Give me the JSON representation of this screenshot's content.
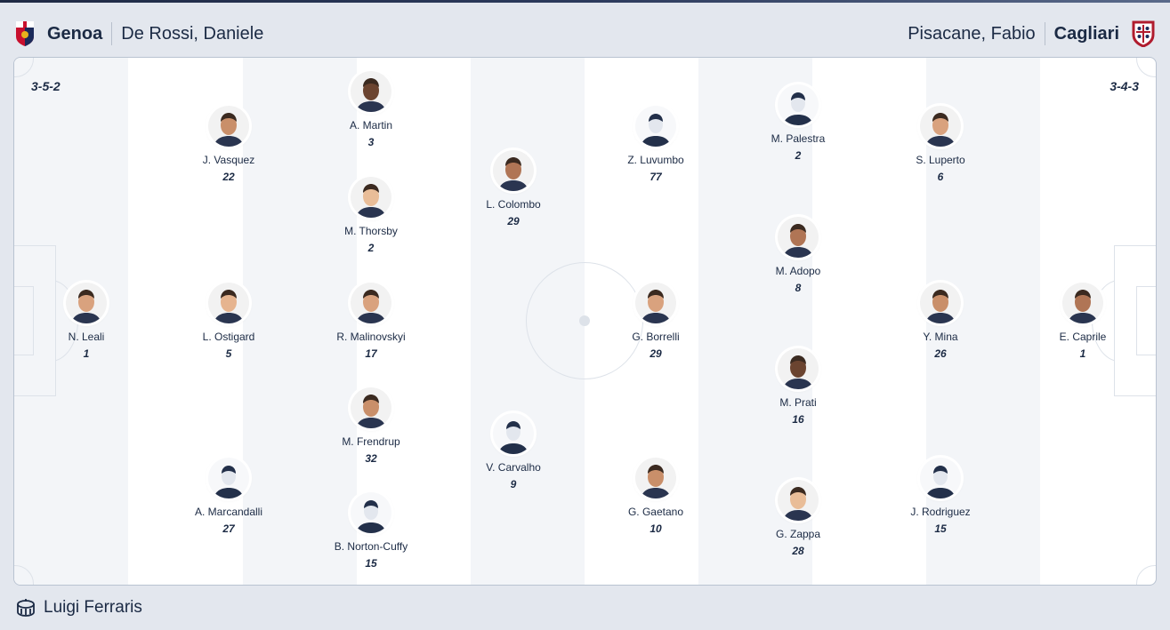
{
  "home": {
    "team": "Genoa",
    "coach": "De Rossi, Daniele",
    "formation": "3-5-2",
    "crest_colors": [
      "#c8102e",
      "#1b2a5a"
    ]
  },
  "away": {
    "team": "Cagliari",
    "coach": "Pisacane, Fabio",
    "formation": "3-4-3",
    "crest_colors": [
      "#b01c2e",
      "#1b2a5a"
    ]
  },
  "players": [
    {
      "name": "N. Leali",
      "number": "1",
      "team": "home",
      "photo": true
    },
    {
      "name": "J. Vasquez",
      "number": "22",
      "team": "home",
      "photo": true
    },
    {
      "name": "L. Ostigard",
      "number": "5",
      "team": "home",
      "photo": true
    },
    {
      "name": "A. Marcandalli",
      "number": "27",
      "team": "home",
      "photo": false
    },
    {
      "name": "A. Martin",
      "number": "3",
      "team": "home",
      "photo": true
    },
    {
      "name": "M. Thorsby",
      "number": "2",
      "team": "home",
      "photo": true
    },
    {
      "name": "R. Malinovskyi",
      "number": "17",
      "team": "home",
      "photo": true
    },
    {
      "name": "M. Frendrup",
      "number": "32",
      "team": "home",
      "photo": true
    },
    {
      "name": "B. Norton-Cuffy",
      "number": "15",
      "team": "home",
      "photo": false
    },
    {
      "name": "L. Colombo",
      "number": "29",
      "team": "home",
      "photo": true
    },
    {
      "name": "V. Carvalho",
      "number": "9",
      "team": "home",
      "photo": false
    },
    {
      "name": "Z. Luvumbo",
      "number": "77",
      "team": "away",
      "photo": false
    },
    {
      "name": "G. Borrelli",
      "number": "29",
      "team": "away",
      "photo": true
    },
    {
      "name": "G. Gaetano",
      "number": "10",
      "team": "away",
      "photo": true
    },
    {
      "name": "M. Palestra",
      "number": "2",
      "team": "away",
      "photo": false
    },
    {
      "name": "M. Adopo",
      "number": "8",
      "team": "away",
      "photo": true
    },
    {
      "name": "M. Prati",
      "number": "16",
      "team": "away",
      "photo": true
    },
    {
      "name": "G. Zappa",
      "number": "28",
      "team": "away",
      "photo": true
    },
    {
      "name": "S. Luperto",
      "number": "6",
      "team": "away",
      "photo": true
    },
    {
      "name": "Y. Mina",
      "number": "26",
      "team": "away",
      "photo": true
    },
    {
      "name": "J. Rodriguez",
      "number": "15",
      "team": "away",
      "photo": false
    },
    {
      "name": "E. Caprile",
      "number": "1",
      "team": "away",
      "photo": true
    }
  ],
  "venue": {
    "name": "Luigi Ferraris",
    "icon": "stadium-icon"
  }
}
